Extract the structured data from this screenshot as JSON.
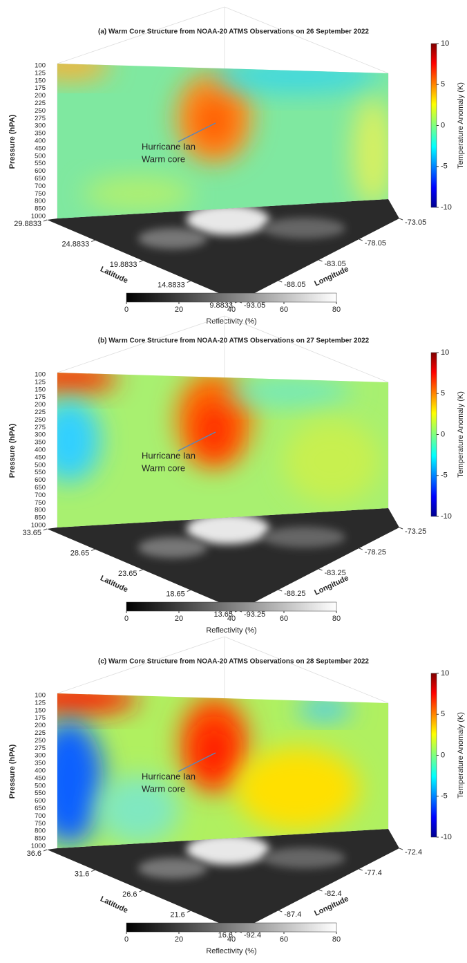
{
  "chart_data": [
    {
      "type": "surface3d",
      "title": "(a) Warm Core Structure from NOAA-20 ATMS Observations on 26 September 2022",
      "z_label": "Pressure (hPA)",
      "z_levels": [
        "100",
        "125",
        "150",
        "175",
        "200",
        "225",
        "250",
        "275",
        "300",
        "350",
        "400",
        "450",
        "500",
        "550",
        "600",
        "650",
        "700",
        "750",
        "800",
        "850",
        "1000"
      ],
      "x_label": "Latitude",
      "xlim": [
        9.8833,
        29.8833
      ],
      "xticks": [
        29.8833,
        24.8833,
        19.8833,
        14.8833,
        9.8833
      ],
      "y_label": "Longitude",
      "ylim": [
        -93.05,
        -73.05
      ],
      "yticks": [
        -93.05,
        -88.05,
        -83.05,
        -78.05,
        -73.05
      ],
      "colorbar": {
        "label": "Temperature Anomaly (K)",
        "lim": [
          -10,
          10
        ],
        "ticks": [
          10,
          5,
          0,
          -5,
          -10
        ]
      },
      "floor_colorbar": {
        "label": "Reflectivity (%)",
        "lim": [
          0,
          80
        ],
        "ticks": [
          0,
          20,
          40,
          60,
          80
        ]
      },
      "annotation": [
        "Hurricane Ian",
        "Warm core"
      ]
    },
    {
      "type": "surface3d",
      "title": "(b) Warm Core Structure from NOAA-20 ATMS Observations on 27 September 2022",
      "z_label": "Pressure (hPA)",
      "z_levels": [
        "100",
        "125",
        "150",
        "175",
        "200",
        "225",
        "250",
        "275",
        "300",
        "350",
        "400",
        "450",
        "500",
        "550",
        "600",
        "650",
        "700",
        "750",
        "800",
        "850",
        "1000"
      ],
      "x_label": "Latitude",
      "xlim": [
        13.65,
        33.65
      ],
      "xticks": [
        33.65,
        28.65,
        23.65,
        18.65,
        13.65
      ],
      "y_label": "Longitude",
      "ylim": [
        -93.25,
        -73.25
      ],
      "yticks": [
        -93.25,
        -88.25,
        -83.25,
        -78.25,
        -73.25
      ],
      "colorbar": {
        "label": "Temperature Anomaly (K)",
        "lim": [
          -10,
          10
        ],
        "ticks": [
          10,
          5,
          0,
          -5,
          -10
        ]
      },
      "floor_colorbar": {
        "label": "Reflectivity (%)",
        "lim": [
          0,
          80
        ],
        "ticks": [
          0,
          20,
          40,
          60,
          80
        ]
      },
      "annotation": [
        "Hurricane Ian",
        "Warm core"
      ]
    },
    {
      "type": "surface3d",
      "title": "(c) Warm Core Structure from NOAA-20 ATMS Observations on 28 September 2022",
      "z_label": "Pressure (hPA)",
      "z_levels": [
        "100",
        "125",
        "150",
        "175",
        "200",
        "225",
        "250",
        "275",
        "300",
        "350",
        "400",
        "450",
        "500",
        "550",
        "600",
        "650",
        "700",
        "750",
        "800",
        "850",
        "1000"
      ],
      "x_label": "Latitude",
      "xlim": [
        16.6,
        36.6
      ],
      "xticks": [
        36.6,
        31.6,
        26.6,
        21.6,
        16.6
      ],
      "y_label": "Longitude",
      "ylim": [
        -92.4,
        -72.4
      ],
      "yticks": [
        -92.4,
        -87.4,
        -82.4,
        -77.4,
        -72.4
      ],
      "colorbar": {
        "label": "Temperature Anomaly (K)",
        "lim": [
          -10,
          10
        ],
        "ticks": [
          10,
          5,
          0,
          -5,
          -10
        ]
      },
      "floor_colorbar": {
        "label": "Reflectivity (%)",
        "lim": [
          0,
          80
        ],
        "ticks": [
          0,
          20,
          40,
          60,
          80
        ]
      },
      "annotation": [
        "Hurricane Ian",
        "Warm core"
      ]
    }
  ]
}
